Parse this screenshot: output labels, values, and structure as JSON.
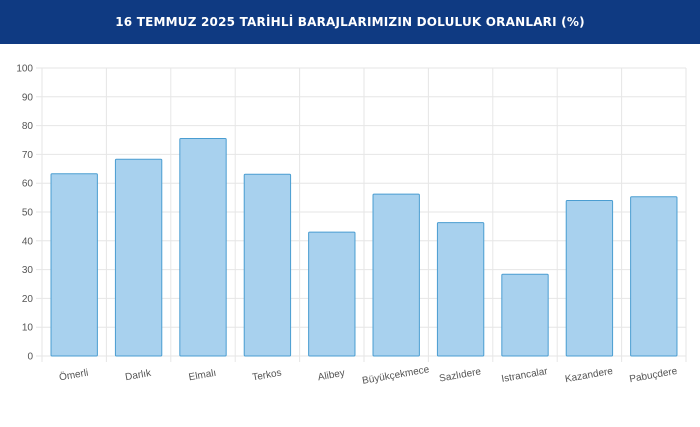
{
  "header": {
    "title": "16 TEMMUZ 2025 TARİHLİ BARAJLARIMIZIN DOLULUK ORANLARI (%)"
  },
  "colors": {
    "header_bg": "#0f3a82",
    "bar_fill": "#a8d1ee",
    "bar_stroke": "#4a9dd1",
    "grid": "#e6e6e6"
  },
  "chart_data": {
    "type": "bar",
    "title": "16 TEMMUZ 2025 TARİHLİ BARAJLARIMIZIN DOLULUK ORANLARI (%)",
    "categories": [
      "Ömerli",
      "Darlık",
      "Elmalı",
      "Terkos",
      "Alibey",
      "Büyükçekmece",
      "Sazlıdere",
      "Istrancalar",
      "Kazandere",
      "Pabuçdere"
    ],
    "values": [
      63.3,
      68.3,
      75.5,
      63.1,
      43.0,
      56.2,
      46.3,
      28.4,
      54.0,
      55.3
    ],
    "ylim": [
      0,
      100
    ],
    "yticks": [
      0,
      10,
      20,
      30,
      40,
      50,
      60,
      70,
      80,
      90,
      100
    ],
    "grid": true,
    "legend": "none"
  }
}
